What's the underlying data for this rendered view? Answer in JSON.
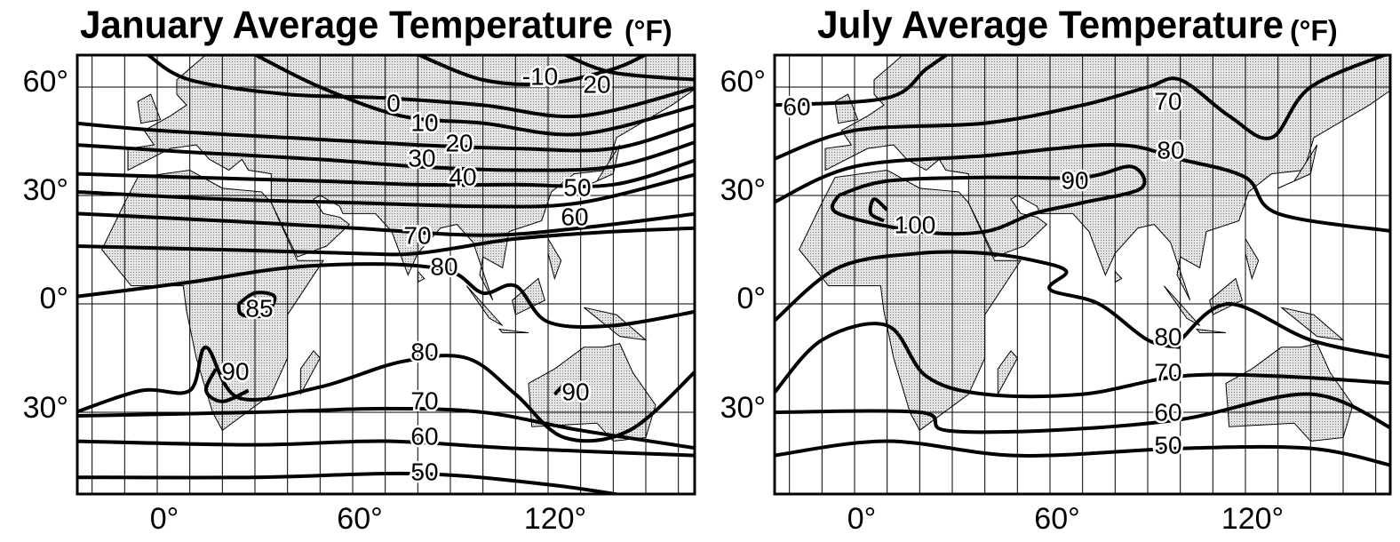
{
  "maps": [
    {
      "title": "January Average Temperature",
      "unit": "(°F)",
      "lat_labels": [
        "60°",
        "30°",
        "0°",
        "30°"
      ],
      "lon_labels": [
        "0°",
        "60°",
        "120°"
      ],
      "isotherm_labels": [
        "-10",
        "20",
        "0",
        "10",
        "20",
        "30",
        "40",
        "50",
        "60",
        "70",
        "80",
        "85",
        "90",
        "80",
        "90",
        "70",
        "60",
        "50"
      ]
    },
    {
      "title": "July Average Temperature",
      "unit": "(°F)",
      "lat_labels": [
        "60°",
        "30°",
        "0°",
        "30°"
      ],
      "lon_labels": [
        "0°",
        "60°",
        "120°"
      ],
      "isotherm_labels": [
        "60",
        "70",
        "80",
        "90",
        "100",
        "80",
        "70",
        "60",
        "50"
      ]
    }
  ]
}
